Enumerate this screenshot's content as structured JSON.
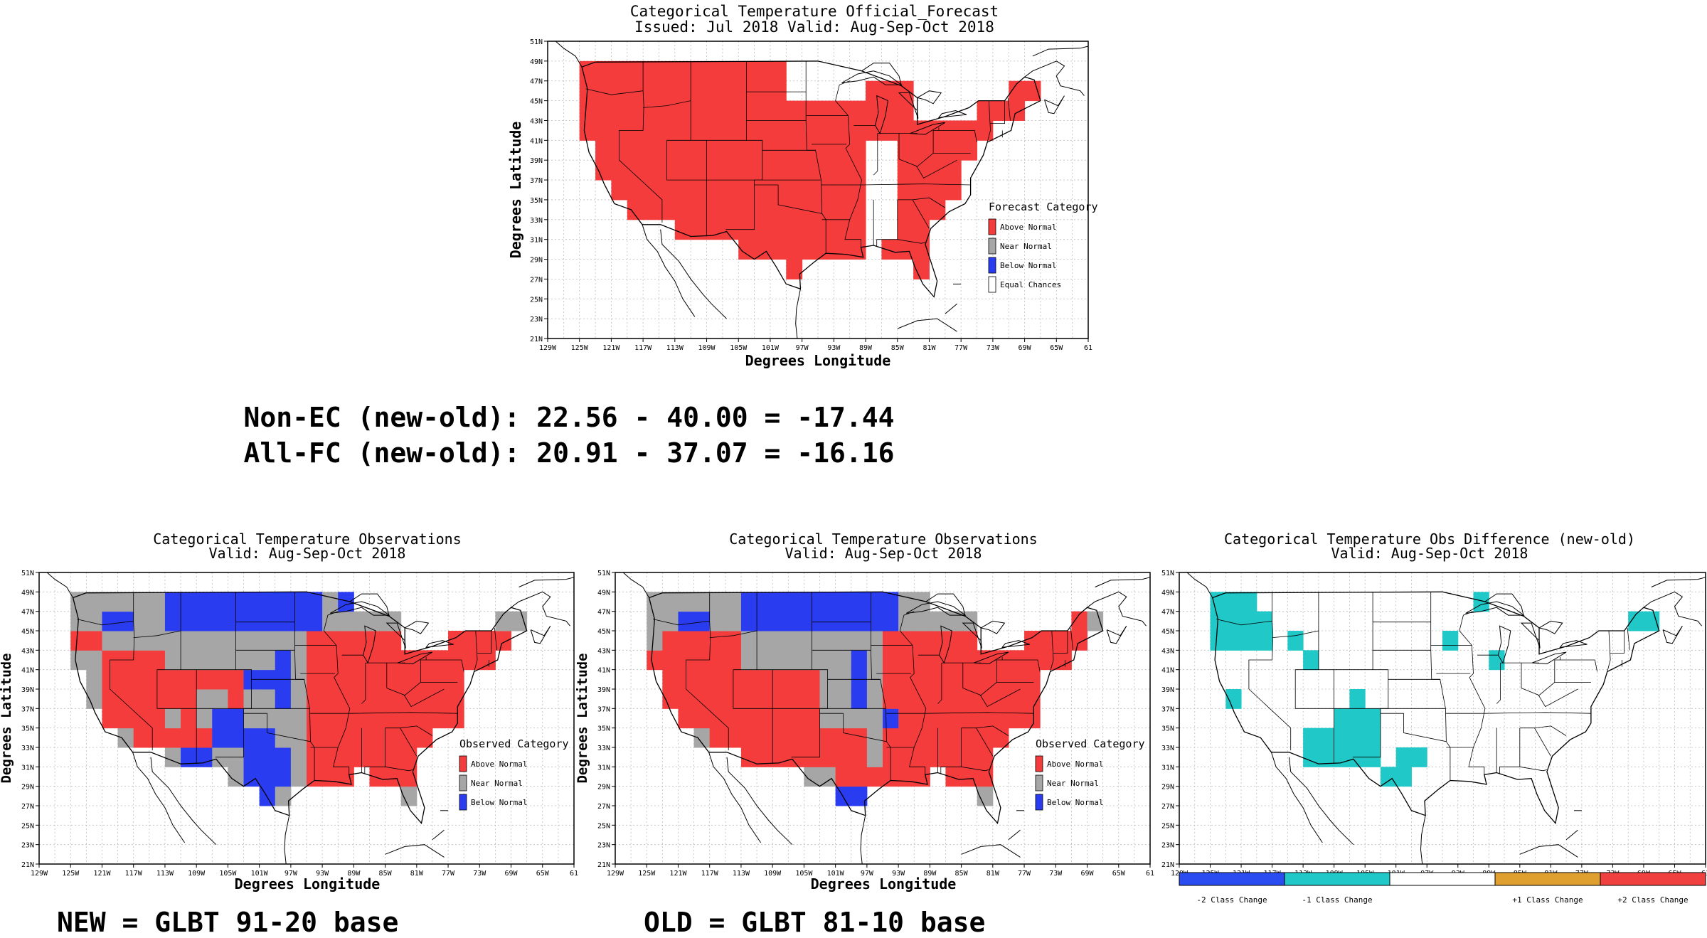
{
  "colors": {
    "above": "#f43c3c",
    "near": "#a6a6a6",
    "below": "#2a3cf0",
    "ec": "#ffffff",
    "minus2": "#2a4cf0",
    "minus1": "#20c8c8",
    "zero": "#ffffff",
    "plus1": "#e0a030",
    "plus2": "#f04040"
  },
  "longitude_ticks": [
    "129W",
    "125W",
    "121W",
    "117W",
    "113W",
    "109W",
    "105W",
    "101W",
    "97W",
    "93W",
    "89W",
    "85W",
    "81W",
    "77W",
    "73W",
    "69W",
    "65W",
    "61"
  ],
  "latitude_ticks": [
    "21N",
    "23N",
    "25N",
    "27N",
    "29N",
    "31N",
    "33N",
    "35N",
    "37N",
    "39N",
    "41N",
    "43N",
    "45N",
    "47N",
    "49N",
    "51N"
  ],
  "axis_labels": {
    "x": "Degrees Longitude",
    "y": "Degrees Latitude"
  },
  "forecast_panel": {
    "title_line1": "Categorical Temperature Official_Forecast",
    "title_line2": "Issued: Jul 2018 Valid: Aug-Sep-Oct 2018",
    "legend_title": "Forecast Category",
    "legend": [
      {
        "label": "Above Normal",
        "key": "above"
      },
      {
        "label": "Near Normal",
        "key": "near"
      },
      {
        "label": "Below Normal",
        "key": "below"
      },
      {
        "label": "Equal Chances",
        "key": "ec"
      }
    ]
  },
  "scores": {
    "line1": "Non-EC (new-old): 22.56 - 40.00 = -17.44",
    "line2": "All-FC (new-old): 20.91 - 37.07 = -16.16"
  },
  "obs_new_panel": {
    "title_line1": "Categorical Temperature Observations",
    "title_line2": "Valid: Aug-Sep-Oct 2018",
    "legend_title": "Observed Category",
    "legend": [
      {
        "label": "Above Normal",
        "key": "above"
      },
      {
        "label": "Near Normal",
        "key": "near"
      },
      {
        "label": "Below Normal",
        "key": "below"
      }
    ],
    "caption": "NEW = GLBT 91-20 base"
  },
  "obs_old_panel": {
    "title_line1": "Categorical Temperature Observations",
    "title_line2": "Valid: Aug-Sep-Oct 2018",
    "legend_title": "Observed Category",
    "legend": [
      {
        "label": "Above Normal",
        "key": "above"
      },
      {
        "label": "Near Normal",
        "key": "near"
      },
      {
        "label": "Below Normal",
        "key": "below"
      }
    ],
    "caption": "OLD = GLBT 81-10 base"
  },
  "diff_panel": {
    "title_line1": "Categorical Temperature Obs Difference (new-old)",
    "title_line2": "Valid: Aug-Sep-Oct 2018",
    "colorbar": [
      {
        "label": "-2 Class Change",
        "key": "minus2"
      },
      {
        "label": "-1 Class Change",
        "key": "minus1"
      },
      {
        "label": "",
        "key": "zero"
      },
      {
        "label": "+1 Class Change",
        "key": "plus1"
      },
      {
        "label": "+2 Class Change",
        "key": "plus2"
      }
    ]
  }
}
